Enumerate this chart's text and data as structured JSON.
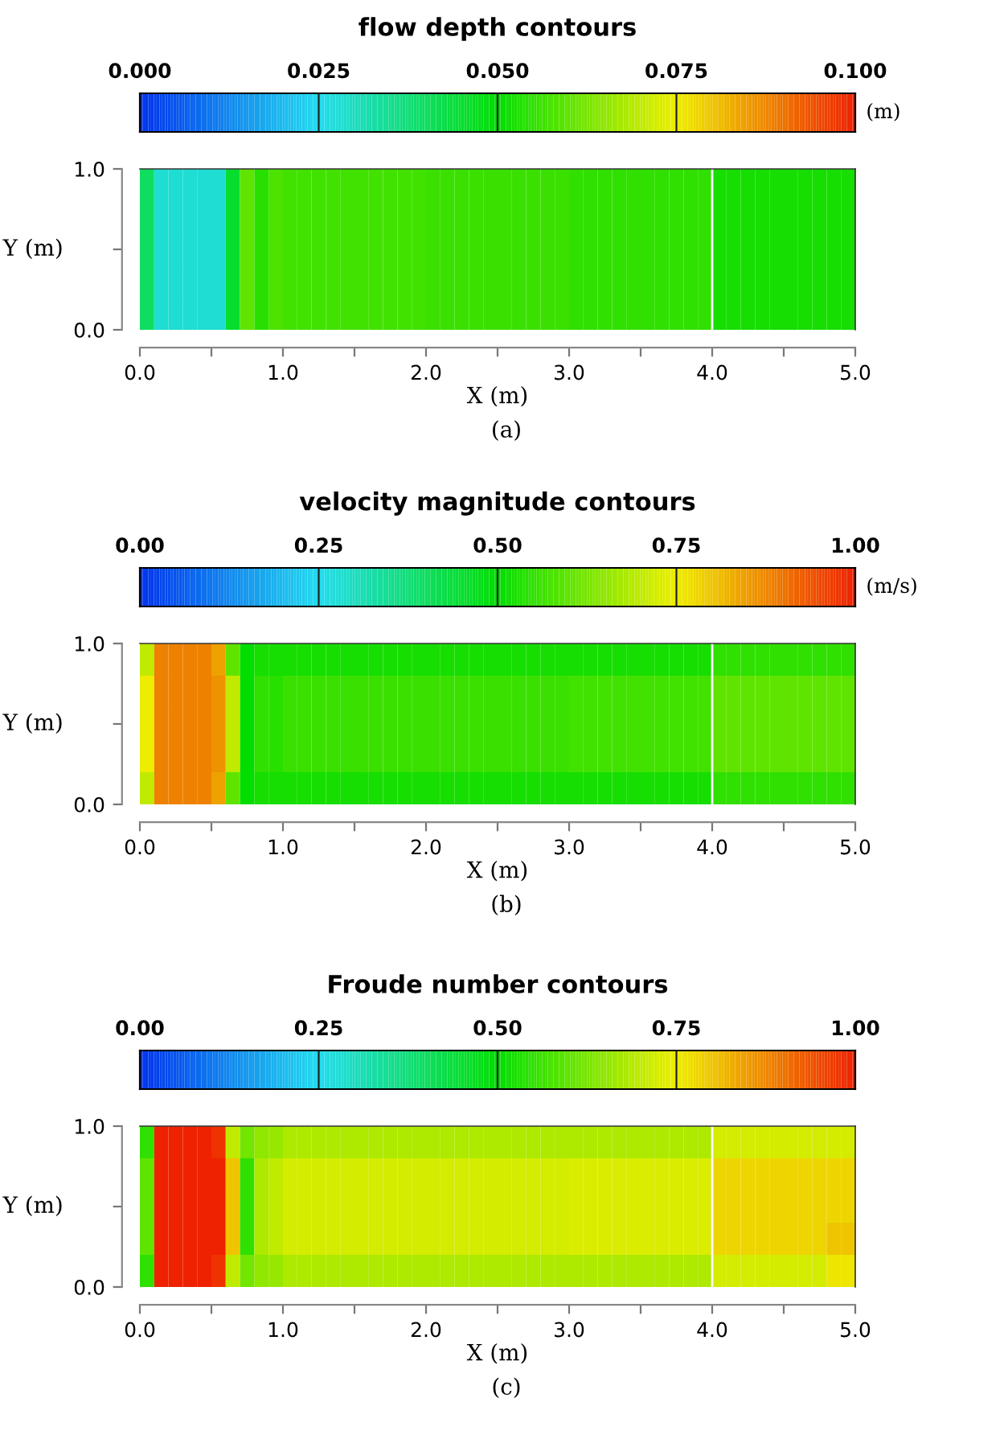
{
  "chart_data": [
    {
      "type": "heatmap",
      "title": "flow depth contours",
      "clabel": "(m)",
      "xlabel": "X (m)",
      "ylabel": "Y (m)",
      "annotations": [
        "(a)"
      ],
      "x": [
        0.05,
        0.15,
        0.25,
        0.35,
        0.45,
        0.55,
        0.65,
        0.75,
        0.85,
        0.95,
        1.05,
        1.15,
        1.25,
        1.35,
        1.45,
        1.55,
        1.65,
        1.75,
        1.85,
        1.95,
        2.05,
        2.15,
        2.25,
        2.35,
        2.45,
        2.55,
        2.65,
        2.75,
        2.85,
        2.95,
        3.05,
        3.15,
        3.25,
        3.35,
        3.45,
        3.55,
        3.65,
        3.75,
        3.85,
        3.95,
        4.05,
        4.15,
        4.25,
        4.35,
        4.45,
        4.55,
        4.65,
        4.75,
        4.85,
        4.95
      ],
      "xlim": [
        0,
        5
      ],
      "ylim": [
        0,
        1
      ],
      "xticks": [
        {
          "value": 0,
          "label": "0.0"
        },
        {
          "value": 0.5,
          "label": null
        },
        {
          "value": 1,
          "label": "1.0"
        },
        {
          "value": 1.5,
          "label": null
        },
        {
          "value": 2,
          "label": "2.0"
        },
        {
          "value": 2.5,
          "label": null
        },
        {
          "value": 3,
          "label": "3.0"
        },
        {
          "value": 3.5,
          "label": null
        },
        {
          "value": 4,
          "label": "4.0"
        },
        {
          "value": 4.5,
          "label": null
        },
        {
          "value": 5,
          "label": "5.0"
        }
      ],
      "yticks": [
        {
          "value": 0,
          "label": "0.0"
        },
        {
          "value": 0.5,
          "label": null
        },
        {
          "value": 1,
          "label": "1.0"
        }
      ],
      "clim": [
        0,
        0.1
      ],
      "cticks": [
        {
          "value": 0,
          "label": "0.000"
        },
        {
          "value": 0.025,
          "label": "0.025"
        },
        {
          "value": 0.05,
          "label": "0.050"
        },
        {
          "value": 0.075,
          "label": "0.075"
        },
        {
          "value": 0.1,
          "label": "0.100"
        }
      ],
      "ref_lines": [
        {
          "axis": "x",
          "value": 4,
          "color": "#ffffff"
        }
      ],
      "cells": [
        [
          0.04,
          0.028,
          0.028,
          0.028,
          0.028,
          0.028,
          0.045,
          0.06,
          0.054,
          0.058,
          0.057,
          0.057,
          0.057,
          0.057,
          0.057,
          0.057,
          0.057,
          0.057,
          0.057,
          0.057,
          0.056,
          0.056,
          0.056,
          0.056,
          0.056,
          0.056,
          0.056,
          0.056,
          0.056,
          0.056,
          0.055,
          0.055,
          0.055,
          0.055,
          0.055,
          0.055,
          0.055,
          0.055,
          0.055,
          0.055,
          0.052,
          0.052,
          0.052,
          0.052,
          0.052,
          0.052,
          0.052,
          0.052,
          0.052,
          0.052
        ],
        [
          0.04,
          0.028,
          0.028,
          0.028,
          0.028,
          0.028,
          0.045,
          0.06,
          0.054,
          0.058,
          0.057,
          0.057,
          0.057,
          0.057,
          0.057,
          0.057,
          0.057,
          0.057,
          0.057,
          0.057,
          0.056,
          0.056,
          0.056,
          0.056,
          0.056,
          0.056,
          0.056,
          0.056,
          0.056,
          0.056,
          0.055,
          0.055,
          0.055,
          0.055,
          0.055,
          0.055,
          0.055,
          0.055,
          0.055,
          0.055,
          0.052,
          0.052,
          0.052,
          0.052,
          0.052,
          0.052,
          0.052,
          0.052,
          0.052,
          0.052
        ],
        [
          0.04,
          0.028,
          0.028,
          0.028,
          0.028,
          0.028,
          0.045,
          0.06,
          0.054,
          0.058,
          0.057,
          0.057,
          0.057,
          0.057,
          0.057,
          0.057,
          0.057,
          0.057,
          0.057,
          0.057,
          0.056,
          0.056,
          0.056,
          0.056,
          0.056,
          0.056,
          0.056,
          0.056,
          0.056,
          0.056,
          0.055,
          0.055,
          0.055,
          0.055,
          0.055,
          0.055,
          0.055,
          0.055,
          0.055,
          0.055,
          0.052,
          0.052,
          0.052,
          0.052,
          0.052,
          0.052,
          0.052,
          0.052,
          0.052,
          0.052
        ],
        [
          0.04,
          0.028,
          0.028,
          0.028,
          0.028,
          0.028,
          0.045,
          0.06,
          0.054,
          0.058,
          0.057,
          0.057,
          0.057,
          0.057,
          0.057,
          0.057,
          0.057,
          0.057,
          0.057,
          0.057,
          0.056,
          0.056,
          0.056,
          0.056,
          0.056,
          0.056,
          0.056,
          0.056,
          0.056,
          0.056,
          0.055,
          0.055,
          0.055,
          0.055,
          0.055,
          0.055,
          0.055,
          0.055,
          0.055,
          0.055,
          0.052,
          0.052,
          0.052,
          0.052,
          0.052,
          0.052,
          0.052,
          0.052,
          0.052,
          0.052
        ],
        [
          0.04,
          0.028,
          0.028,
          0.028,
          0.028,
          0.028,
          0.045,
          0.06,
          0.054,
          0.058,
          0.057,
          0.057,
          0.057,
          0.057,
          0.057,
          0.057,
          0.057,
          0.057,
          0.057,
          0.057,
          0.056,
          0.056,
          0.056,
          0.056,
          0.056,
          0.056,
          0.056,
          0.056,
          0.056,
          0.056,
          0.055,
          0.055,
          0.055,
          0.055,
          0.055,
          0.055,
          0.055,
          0.055,
          0.055,
          0.055,
          0.052,
          0.052,
          0.052,
          0.052,
          0.052,
          0.052,
          0.052,
          0.052,
          0.052,
          0.052
        ]
      ]
    },
    {
      "type": "heatmap",
      "title": "velocity magnitude contours",
      "clabel": "(m/s)",
      "xlabel": "X (m)",
      "ylabel": "Y (m)",
      "annotations": [
        "(b)"
      ],
      "x": [
        0.05,
        0.15,
        0.25,
        0.35,
        0.45,
        0.55,
        0.65,
        0.75,
        0.85,
        0.95,
        1.05,
        1.15,
        1.25,
        1.35,
        1.45,
        1.55,
        1.65,
        1.75,
        1.85,
        1.95,
        2.05,
        2.15,
        2.25,
        2.35,
        2.45,
        2.55,
        2.65,
        2.75,
        2.85,
        2.95,
        3.05,
        3.15,
        3.25,
        3.35,
        3.45,
        3.55,
        3.65,
        3.75,
        3.85,
        3.95,
        4.05,
        4.15,
        4.25,
        4.35,
        4.45,
        4.55,
        4.65,
        4.75,
        4.85,
        4.95
      ],
      "xlim": [
        0,
        5
      ],
      "ylim": [
        0,
        1
      ],
      "xticks": [
        {
          "value": 0,
          "label": "0.0"
        },
        {
          "value": 0.5,
          "label": null
        },
        {
          "value": 1,
          "label": "1.0"
        },
        {
          "value": 1.5,
          "label": null
        },
        {
          "value": 2,
          "label": "2.0"
        },
        {
          "value": 2.5,
          "label": null
        },
        {
          "value": 3,
          "label": "3.0"
        },
        {
          "value": 3.5,
          "label": null
        },
        {
          "value": 4,
          "label": "4.0"
        },
        {
          "value": 4.5,
          "label": null
        },
        {
          "value": 5,
          "label": "5.0"
        }
      ],
      "yticks": [
        {
          "value": 0,
          "label": "0.0"
        },
        {
          "value": 0.5,
          "label": null
        },
        {
          "value": 1,
          "label": "1.0"
        }
      ],
      "clim": [
        0,
        1
      ],
      "cticks": [
        {
          "value": 0,
          "label": "0.00"
        },
        {
          "value": 0.25,
          "label": "0.25"
        },
        {
          "value": 0.5,
          "label": "0.50"
        },
        {
          "value": 0.75,
          "label": "0.75"
        },
        {
          "value": 1,
          "label": "1.00"
        }
      ],
      "ref_lines": [
        {
          "axis": "x",
          "value": 4,
          "color": "#ffffff"
        }
      ],
      "cells": [
        [
          0.7,
          0.88,
          0.88,
          0.88,
          0.88,
          0.84,
          0.6,
          0.5,
          0.52,
          0.52,
          0.52,
          0.52,
          0.52,
          0.52,
          0.52,
          0.52,
          0.52,
          0.52,
          0.52,
          0.52,
          0.52,
          0.52,
          0.52,
          0.52,
          0.52,
          0.52,
          0.52,
          0.52,
          0.52,
          0.52,
          0.52,
          0.52,
          0.52,
          0.52,
          0.52,
          0.52,
          0.52,
          0.52,
          0.52,
          0.52,
          0.55,
          0.55,
          0.55,
          0.55,
          0.55,
          0.55,
          0.55,
          0.55,
          0.55,
          0.55
        ],
        [
          0.75,
          0.88,
          0.88,
          0.88,
          0.88,
          0.86,
          0.7,
          0.5,
          0.55,
          0.54,
          0.56,
          0.56,
          0.56,
          0.56,
          0.56,
          0.56,
          0.56,
          0.56,
          0.56,
          0.56,
          0.56,
          0.56,
          0.56,
          0.56,
          0.56,
          0.56,
          0.56,
          0.56,
          0.56,
          0.56,
          0.57,
          0.57,
          0.57,
          0.57,
          0.57,
          0.57,
          0.57,
          0.57,
          0.57,
          0.57,
          0.6,
          0.6,
          0.6,
          0.6,
          0.6,
          0.6,
          0.6,
          0.6,
          0.6,
          0.6
        ],
        [
          0.75,
          0.88,
          0.88,
          0.88,
          0.88,
          0.86,
          0.7,
          0.5,
          0.55,
          0.54,
          0.56,
          0.56,
          0.56,
          0.56,
          0.56,
          0.56,
          0.56,
          0.56,
          0.56,
          0.56,
          0.56,
          0.56,
          0.56,
          0.56,
          0.56,
          0.56,
          0.56,
          0.56,
          0.56,
          0.56,
          0.57,
          0.57,
          0.57,
          0.57,
          0.57,
          0.57,
          0.57,
          0.57,
          0.57,
          0.57,
          0.6,
          0.6,
          0.6,
          0.6,
          0.6,
          0.6,
          0.6,
          0.6,
          0.6,
          0.6
        ],
        [
          0.75,
          0.88,
          0.88,
          0.88,
          0.88,
          0.86,
          0.7,
          0.5,
          0.55,
          0.54,
          0.56,
          0.56,
          0.56,
          0.56,
          0.56,
          0.56,
          0.56,
          0.56,
          0.56,
          0.56,
          0.56,
          0.56,
          0.56,
          0.56,
          0.56,
          0.56,
          0.56,
          0.56,
          0.56,
          0.56,
          0.57,
          0.57,
          0.57,
          0.57,
          0.57,
          0.57,
          0.57,
          0.57,
          0.57,
          0.57,
          0.6,
          0.6,
          0.6,
          0.6,
          0.6,
          0.6,
          0.6,
          0.6,
          0.6,
          0.6
        ],
        [
          0.7,
          0.88,
          0.88,
          0.88,
          0.88,
          0.84,
          0.6,
          0.5,
          0.52,
          0.52,
          0.52,
          0.52,
          0.52,
          0.52,
          0.52,
          0.52,
          0.52,
          0.52,
          0.52,
          0.52,
          0.52,
          0.52,
          0.52,
          0.52,
          0.52,
          0.52,
          0.52,
          0.52,
          0.52,
          0.52,
          0.52,
          0.52,
          0.52,
          0.52,
          0.52,
          0.52,
          0.52,
          0.52,
          0.52,
          0.52,
          0.55,
          0.55,
          0.55,
          0.55,
          0.55,
          0.55,
          0.55,
          0.55,
          0.55,
          0.55
        ]
      ]
    },
    {
      "type": "heatmap",
      "title": "Froude number contours",
      "xlabel": "X (m)",
      "ylabel": "Y (m)",
      "annotations": [
        "(c)"
      ],
      "x": [
        0.05,
        0.15,
        0.25,
        0.35,
        0.45,
        0.55,
        0.65,
        0.75,
        0.85,
        0.95,
        1.05,
        1.15,
        1.25,
        1.35,
        1.45,
        1.55,
        1.65,
        1.75,
        1.85,
        1.95,
        2.05,
        2.15,
        2.25,
        2.35,
        2.45,
        2.55,
        2.65,
        2.75,
        2.85,
        2.95,
        3.05,
        3.15,
        3.25,
        3.35,
        3.45,
        3.55,
        3.65,
        3.75,
        3.85,
        3.95,
        4.05,
        4.15,
        4.25,
        4.35,
        4.45,
        4.55,
        4.65,
        4.75,
        4.85,
        4.95
      ],
      "xlim": [
        0,
        5
      ],
      "ylim": [
        0,
        1
      ],
      "xticks": [
        {
          "value": 0,
          "label": "0.0"
        },
        {
          "value": 0.5,
          "label": null
        },
        {
          "value": 1,
          "label": "1.0"
        },
        {
          "value": 1.5,
          "label": null
        },
        {
          "value": 2,
          "label": "2.0"
        },
        {
          "value": 2.5,
          "label": null
        },
        {
          "value": 3,
          "label": "3.0"
        },
        {
          "value": 3.5,
          "label": null
        },
        {
          "value": 4,
          "label": "4.0"
        },
        {
          "value": 4.5,
          "label": null
        },
        {
          "value": 5,
          "label": "5.0"
        }
      ],
      "yticks": [
        {
          "value": 0,
          "label": "0.0"
        },
        {
          "value": 0.5,
          "label": null
        },
        {
          "value": 1,
          "label": "1.0"
        }
      ],
      "clim": [
        0,
        1
      ],
      "cticks": [
        {
          "value": 0,
          "label": "0.00"
        },
        {
          "value": 0.25,
          "label": "0.25"
        },
        {
          "value": 0.5,
          "label": "0.50"
        },
        {
          "value": 0.75,
          "label": "0.75"
        },
        {
          "value": 1,
          "label": "1.00"
        }
      ],
      "ref_lines": [
        {
          "axis": "x",
          "value": 4,
          "color": "#ffffff"
        }
      ],
      "cells": [
        [
          0.55,
          1.0,
          1.0,
          1.0,
          1.0,
          0.98,
          0.7,
          0.62,
          0.65,
          0.66,
          0.68,
          0.68,
          0.68,
          0.68,
          0.68,
          0.68,
          0.68,
          0.68,
          0.68,
          0.68,
          0.68,
          0.68,
          0.68,
          0.68,
          0.68,
          0.68,
          0.68,
          0.68,
          0.68,
          0.68,
          0.68,
          0.68,
          0.68,
          0.68,
          0.68,
          0.68,
          0.68,
          0.68,
          0.68,
          0.68,
          0.72,
          0.72,
          0.72,
          0.72,
          0.72,
          0.72,
          0.72,
          0.72,
          0.72,
          0.72
        ],
        [
          0.6,
          1.0,
          1.0,
          1.0,
          1.0,
          1.0,
          0.8,
          0.55,
          0.68,
          0.7,
          0.72,
          0.72,
          0.72,
          0.72,
          0.72,
          0.72,
          0.72,
          0.72,
          0.72,
          0.72,
          0.72,
          0.72,
          0.72,
          0.72,
          0.72,
          0.72,
          0.72,
          0.72,
          0.72,
          0.72,
          0.73,
          0.73,
          0.73,
          0.73,
          0.73,
          0.73,
          0.73,
          0.73,
          0.73,
          0.73,
          0.78,
          0.78,
          0.78,
          0.78,
          0.78,
          0.78,
          0.78,
          0.78,
          0.78,
          0.78
        ],
        [
          0.6,
          1.0,
          1.0,
          1.0,
          1.0,
          1.0,
          0.8,
          0.55,
          0.68,
          0.7,
          0.72,
          0.72,
          0.72,
          0.72,
          0.72,
          0.72,
          0.72,
          0.72,
          0.72,
          0.72,
          0.72,
          0.72,
          0.72,
          0.72,
          0.72,
          0.72,
          0.72,
          0.72,
          0.72,
          0.72,
          0.73,
          0.73,
          0.73,
          0.73,
          0.73,
          0.73,
          0.73,
          0.73,
          0.73,
          0.73,
          0.78,
          0.78,
          0.78,
          0.78,
          0.78,
          0.78,
          0.78,
          0.78,
          0.78,
          0.78
        ],
        [
          0.6,
          1.0,
          1.0,
          1.0,
          1.0,
          1.0,
          0.8,
          0.55,
          0.68,
          0.7,
          0.72,
          0.72,
          0.72,
          0.72,
          0.72,
          0.72,
          0.72,
          0.72,
          0.72,
          0.72,
          0.72,
          0.72,
          0.72,
          0.72,
          0.72,
          0.72,
          0.72,
          0.72,
          0.72,
          0.72,
          0.73,
          0.73,
          0.73,
          0.73,
          0.73,
          0.73,
          0.73,
          0.73,
          0.73,
          0.73,
          0.78,
          0.78,
          0.78,
          0.78,
          0.78,
          0.78,
          0.78,
          0.78,
          0.8,
          0.8
        ],
        [
          0.55,
          1.0,
          1.0,
          1.0,
          1.0,
          0.98,
          0.7,
          0.62,
          0.65,
          0.66,
          0.68,
          0.68,
          0.68,
          0.68,
          0.68,
          0.68,
          0.68,
          0.68,
          0.68,
          0.68,
          0.68,
          0.68,
          0.68,
          0.68,
          0.68,
          0.68,
          0.68,
          0.68,
          0.68,
          0.68,
          0.68,
          0.68,
          0.68,
          0.68,
          0.68,
          0.68,
          0.68,
          0.68,
          0.68,
          0.68,
          0.72,
          0.72,
          0.72,
          0.72,
          0.72,
          0.72,
          0.72,
          0.72,
          0.76,
          0.76
        ]
      ]
    }
  ]
}
